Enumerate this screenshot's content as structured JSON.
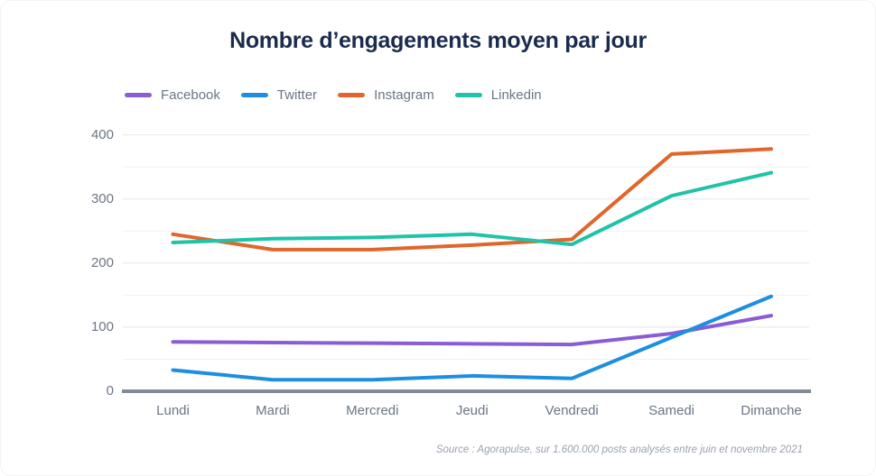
{
  "chart": {
    "title": "Nombre d’engagements moyen par jour",
    "source": "Source : Agorapulse, sur 1.600.000 posts analysés entre juin et novembre 2021"
  },
  "chart_data": {
    "type": "line",
    "title": "Nombre d’engagements moyen par jour",
    "categories": [
      "Lundi",
      "Mardi",
      "Mercredi",
      "Jeudi",
      "Vendredi",
      "Samedi",
      "Dimanche"
    ],
    "series": [
      {
        "name": "Facebook",
        "color": "#8a5cd6",
        "values": [
          77,
          76,
          75,
          74,
          73,
          90,
          118
        ]
      },
      {
        "name": "Twitter",
        "color": "#1e8ee0",
        "values": [
          33,
          18,
          18,
          24,
          20,
          84,
          148
        ]
      },
      {
        "name": "Instagram",
        "color": "#e0662b",
        "values": [
          245,
          221,
          221,
          228,
          237,
          370,
          378
        ]
      },
      {
        "name": "Linkedin",
        "color": "#1fc3a7",
        "values": [
          232,
          238,
          240,
          245,
          229,
          305,
          341
        ]
      }
    ],
    "xlabel": "",
    "ylabel": "",
    "ylim": [
      0,
      400
    ],
    "yticks": [
      0,
      100,
      200,
      300,
      400
    ],
    "minor_grid_step": 50,
    "grid": "horizontal",
    "legend_position": "top-left",
    "colors": {
      "title": "#1b2b4d",
      "axis_text": "#6b7685",
      "major_gridline": "#e7e8ea",
      "minor_gridline": "#f1f1f3",
      "baseline": "#828c97",
      "source_text": "#9aa2ae"
    }
  }
}
